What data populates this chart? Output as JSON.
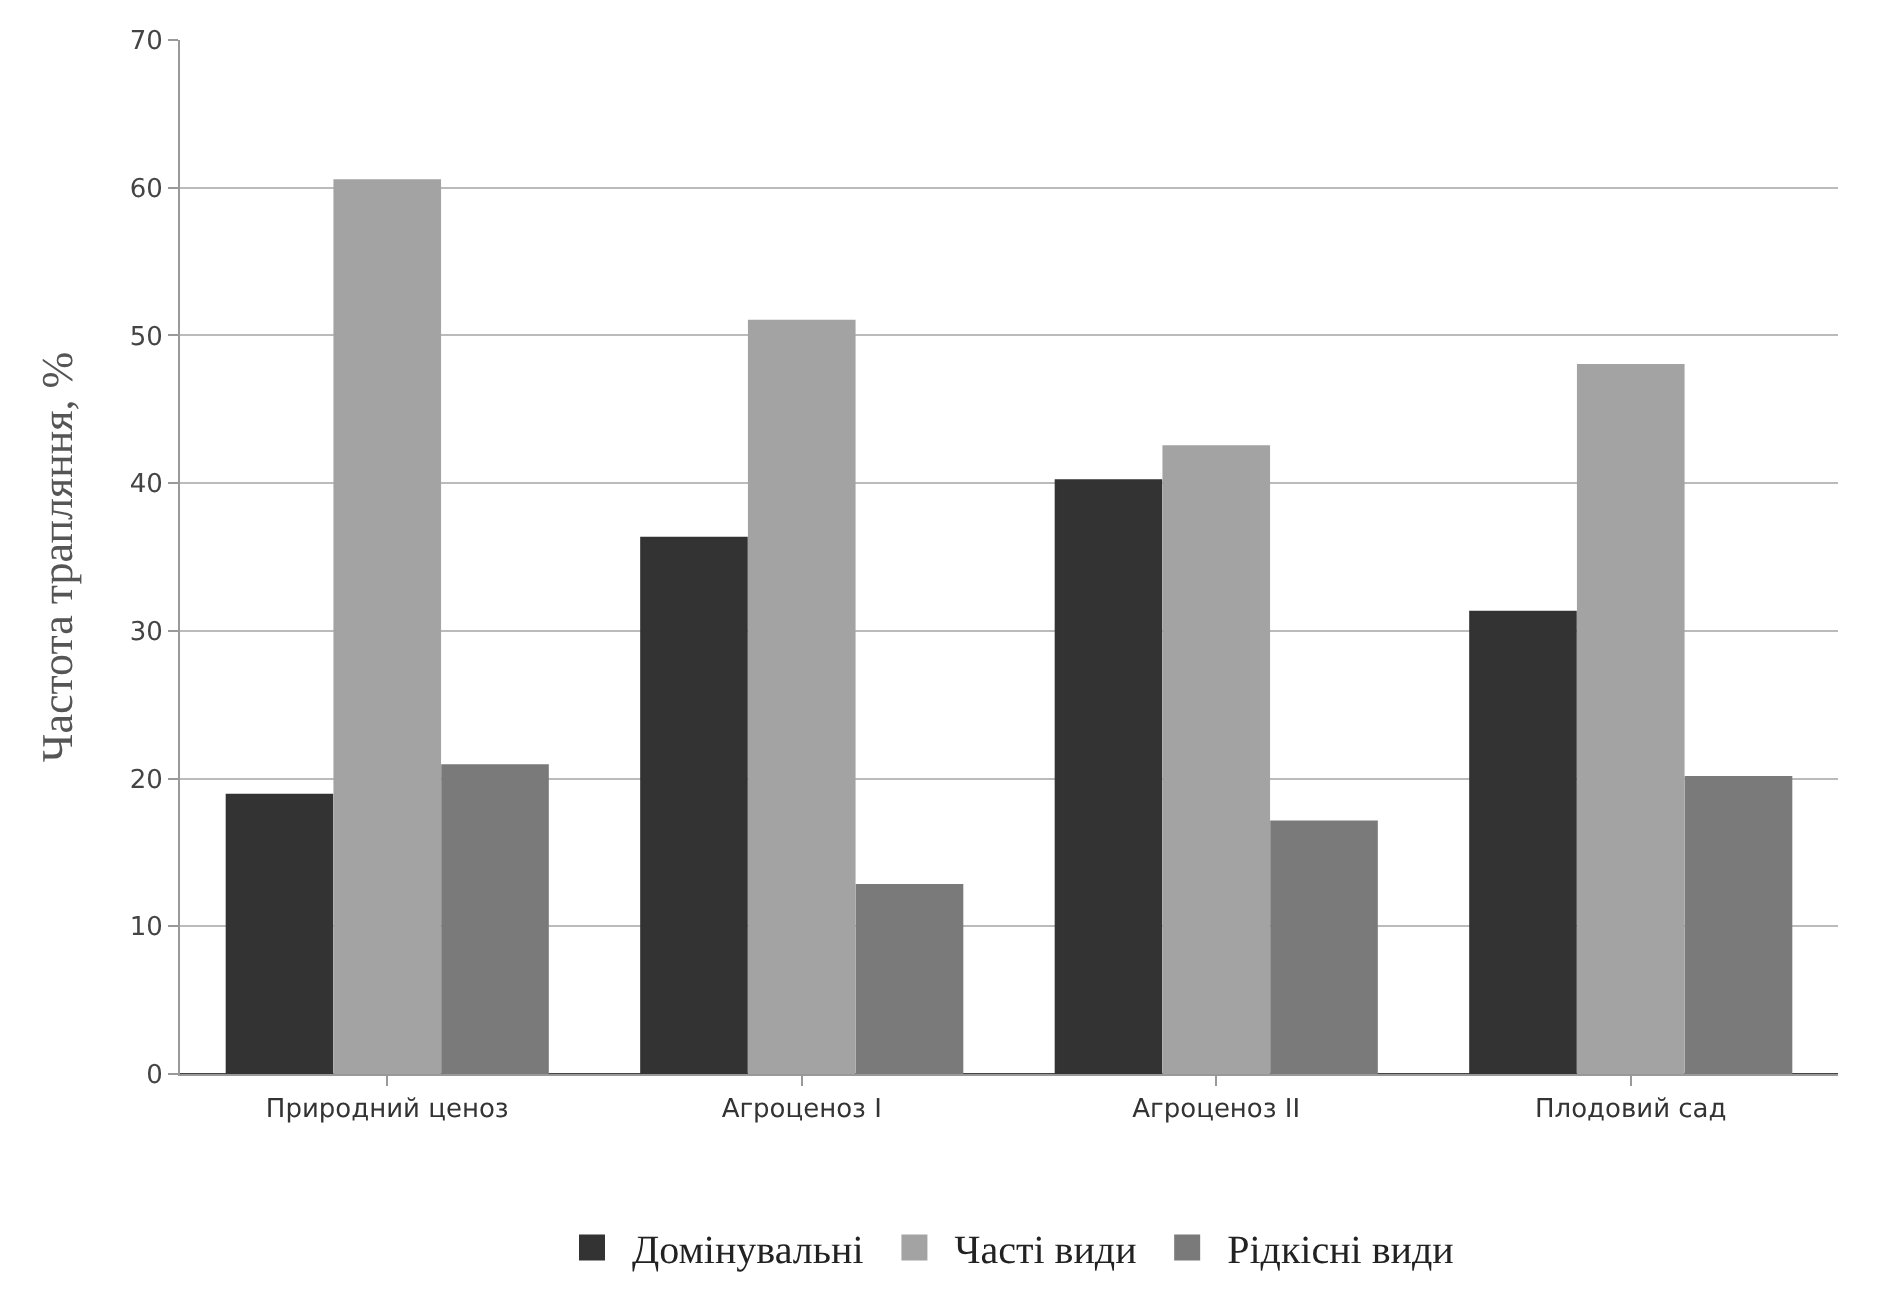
{
  "chart_data": {
    "type": "bar",
    "ylabel": "Частота трапляння, %",
    "categories": [
      "Природний ценоз",
      "Агроценоз I",
      "Агроценоз II",
      "Плодовий сад"
    ],
    "series": [
      {
        "name": "Домінувальні",
        "color": "#333333",
        "values": [
          18.9,
          36.3,
          40.2,
          31.3
        ]
      },
      {
        "name": "Часті види",
        "color": "#a3a3a3",
        "values": [
          60.5,
          51,
          42.5,
          48
        ]
      },
      {
        "name": "Рідкісні види",
        "color": "#7a7a7a",
        "values": [
          20.9,
          12.8,
          17.1,
          20.1
        ]
      }
    ],
    "ylim": [
      0,
      70
    ],
    "yticks": [
      0,
      10,
      20,
      30,
      40,
      50,
      60,
      70
    ],
    "grid": "y",
    "legend": "bottom"
  }
}
